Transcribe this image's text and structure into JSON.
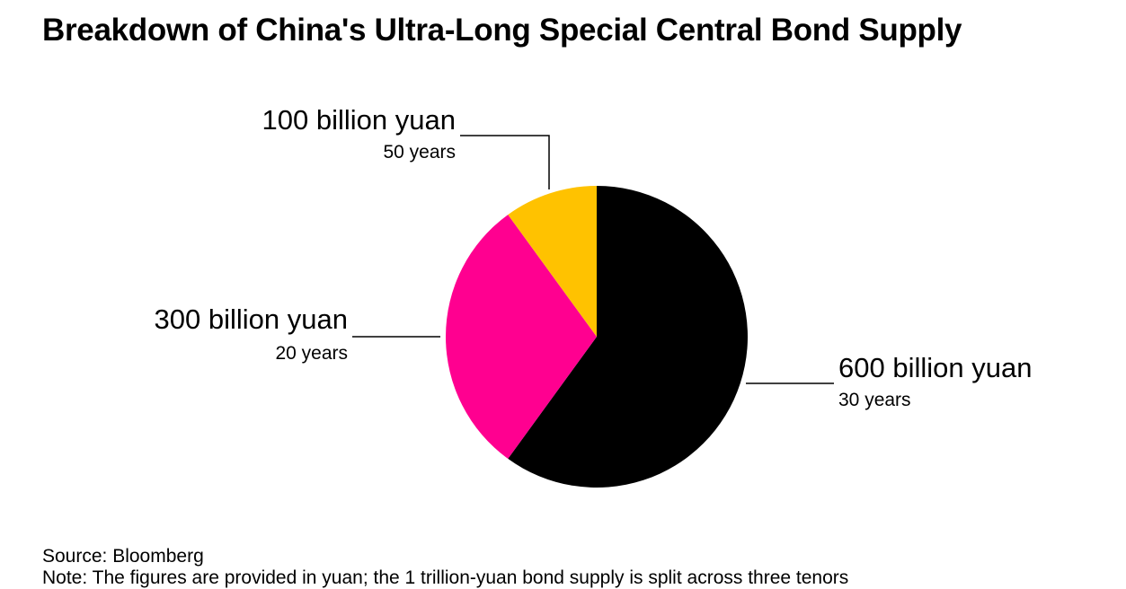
{
  "title": "Breakdown of China's Ultra-Long Special Central Bond Supply",
  "source": "Source: Bloomberg",
  "note": "Note: The figures are provided in yuan; the 1 trillion-yuan bond supply is split across three tenors",
  "chart_data": {
    "type": "pie",
    "title": "Breakdown of China's Ultra-Long Special Central Bond Supply",
    "slices": [
      {
        "label": "600 billion yuan",
        "sublabel": "30 years",
        "value": 600,
        "color": "#000000"
      },
      {
        "label": "300 billion yuan",
        "sublabel": "20 years",
        "value": 300,
        "color": "#ff0090"
      },
      {
        "label": "100 billion yuan",
        "sublabel": "50 years",
        "value": 100,
        "color": "#ffc200"
      }
    ],
    "start": "12 o'clock",
    "direction": "clockwise",
    "legend": "none (callout labels)"
  }
}
